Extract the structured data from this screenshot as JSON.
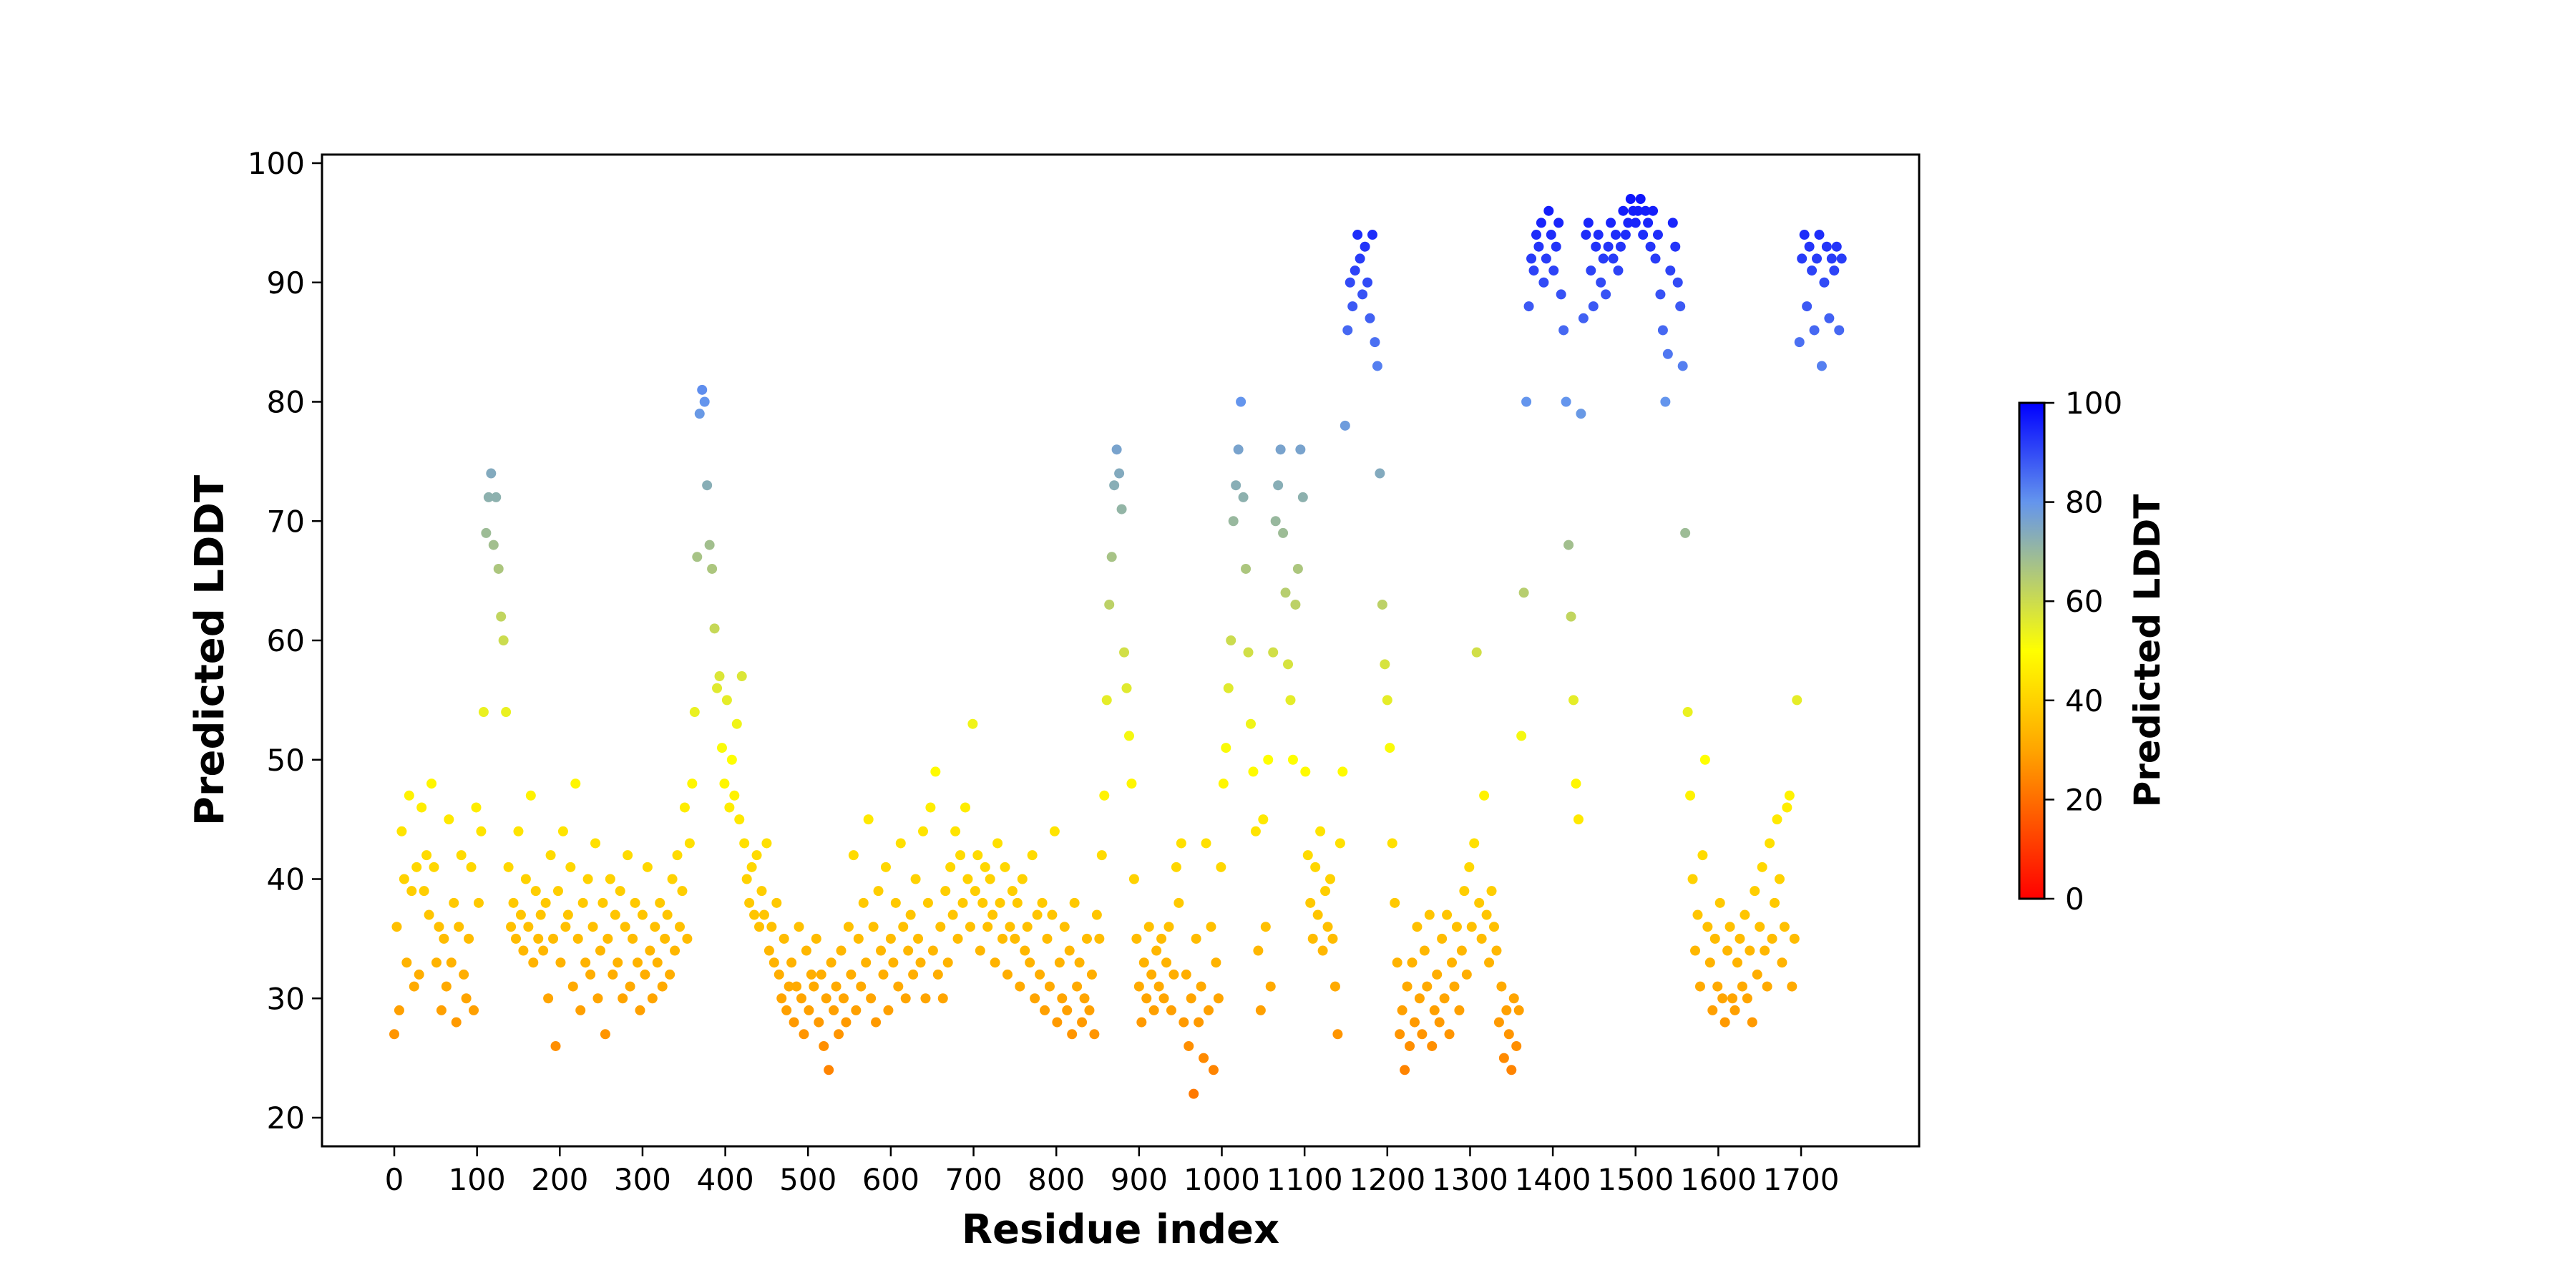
{
  "chart_data": {
    "type": "scatter",
    "title": "",
    "xlabel": "Residue index",
    "ylabel": "Predicted LDDT",
    "xlim": [
      -87,
      1843
    ],
    "ylim": [
      17.7,
      100.7
    ],
    "x_ticks": [
      0,
      100,
      200,
      300,
      400,
      500,
      600,
      700,
      800,
      900,
      1000,
      1100,
      1200,
      1300,
      1400,
      1500,
      1600,
      1700
    ],
    "y_ticks": [
      20,
      30,
      40,
      50,
      60,
      70,
      80,
      90,
      100
    ],
    "grid": false,
    "legend": "none",
    "x_start": 0,
    "x_step": 3,
    "note_sampling": "values sampled every 3 residues",
    "values": [
      27,
      36,
      29,
      44,
      40,
      33,
      47,
      39,
      31,
      41,
      32,
      46,
      39,
      42,
      37,
      48,
      41,
      33,
      36,
      29,
      35,
      31,
      45,
      33,
      38,
      28,
      36,
      42,
      32,
      30,
      35,
      41,
      29,
      46,
      38,
      44,
      54,
      69,
      72,
      74,
      68,
      72,
      66,
      62,
      60,
      54,
      41,
      36,
      38,
      35,
      44,
      37,
      34,
      40,
      36,
      47,
      33,
      39,
      35,
      37,
      34,
      38,
      30,
      42,
      35,
      26,
      39,
      33,
      44,
      36,
      37,
      41,
      31,
      48,
      35,
      29,
      38,
      33,
      40,
      32,
      36,
      43,
      30,
      34,
      38,
      27,
      35,
      40,
      32,
      37,
      33,
      39,
      30,
      36,
      42,
      31,
      35,
      38,
      33,
      29,
      37,
      32,
      41,
      34,
      30,
      36,
      33,
      38,
      31,
      35,
      37,
      32,
      40,
      34,
      42,
      36,
      39,
      46,
      35,
      43,
      48,
      54,
      67,
      79,
      81,
      80,
      73,
      68,
      66,
      61,
      56,
      57,
      51,
      48,
      55,
      46,
      50,
      47,
      53,
      45,
      57,
      43,
      40,
      38,
      41,
      37,
      42,
      36,
      39,
      37,
      43,
      34,
      36,
      33,
      38,
      32,
      30,
      35,
      29,
      31,
      33,
      28,
      31,
      36,
      30,
      27,
      34,
      29,
      32,
      31,
      35,
      28,
      32,
      26,
      30,
      24,
      33,
      29,
      31,
      27,
      34,
      30,
      28,
      36,
      32,
      42,
      29,
      35,
      31,
      38,
      33,
      45,
      30,
      36,
      28,
      39,
      34,
      32,
      41,
      29,
      35,
      33,
      38,
      31,
      43,
      36,
      30,
      34,
      37,
      32,
      40,
      35,
      33,
      44,
      30,
      38,
      46,
      34,
      49,
      32,
      36,
      30,
      39,
      33,
      41,
      37,
      44,
      35,
      42,
      38,
      46,
      40,
      36,
      53,
      39,
      42,
      34,
      38,
      41,
      36,
      40,
      37,
      33,
      43,
      38,
      35,
      41,
      32,
      36,
      39,
      35,
      38,
      31,
      40,
      34,
      36,
      33,
      42,
      30,
      37,
      32,
      38,
      29,
      35,
      31,
      37,
      44,
      28,
      33,
      30,
      36,
      29,
      34,
      27,
      38,
      31,
      33,
      28,
      30,
      35,
      29,
      32,
      27,
      37,
      35,
      42,
      47,
      55,
      63,
      67,
      73,
      76,
      74,
      71,
      59,
      56,
      52,
      48,
      40,
      35,
      31,
      28,
      33,
      30,
      36,
      32,
      29,
      34,
      31,
      35,
      30,
      33,
      36,
      29,
      32,
      41,
      38,
      43,
      28,
      32,
      26,
      30,
      22,
      35,
      28,
      31,
      25,
      43,
      29,
      36,
      24,
      33,
      30,
      41,
      48,
      51,
      56,
      60,
      70,
      73,
      76,
      80,
      72,
      66,
      59,
      53,
      49,
      44,
      34,
      29,
      45,
      36,
      50,
      31,
      59,
      70,
      73,
      76,
      69,
      64,
      58,
      55,
      50,
      63,
      66,
      76,
      72,
      49,
      42,
      38,
      35,
      41,
      37,
      44,
      34,
      39,
      36,
      40,
      35,
      31,
      27,
      43,
      49,
      78,
      86,
      90,
      88,
      91,
      94,
      92,
      89,
      93,
      90,
      87,
      94,
      85,
      83,
      74,
      63,
      58,
      55,
      51,
      43,
      38,
      33,
      27,
      29,
      24,
      31,
      26,
      33,
      28,
      36,
      30,
      27,
      34,
      31,
      37,
      26,
      29,
      32,
      28,
      35,
      30,
      37,
      27,
      33,
      31,
      36,
      29,
      34,
      39,
      32,
      41,
      36,
      43,
      59,
      38,
      35,
      47,
      37,
      33,
      39,
      36,
      34,
      28,
      31,
      25,
      29,
      27,
      24,
      30,
      26,
      29,
      52,
      64,
      80,
      88,
      92,
      91,
      94,
      93,
      95,
      90,
      92,
      96,
      94,
      91,
      93,
      95,
      89,
      86,
      80,
      68,
      62,
      55,
      48,
      45,
      79,
      87,
      94,
      95,
      91,
      88,
      93,
      94,
      90,
      92,
      89,
      93,
      95,
      92,
      94,
      91,
      93,
      96,
      94,
      95,
      97,
      96,
      95,
      96,
      97,
      94,
      96,
      95,
      93,
      96,
      92,
      94,
      89,
      86,
      80,
      84,
      91,
      95,
      93,
      90,
      88,
      83,
      69,
      54,
      47,
      40,
      34,
      37,
      31,
      42,
      50,
      36,
      33,
      29,
      35,
      31,
      38,
      30,
      28,
      34,
      36,
      30,
      29,
      33,
      35,
      31,
      37,
      30,
      34,
      28,
      39,
      32,
      36,
      41,
      34,
      31,
      43,
      35,
      38,
      45,
      40,
      33,
      36,
      46,
      47,
      31,
      35,
      55,
      85,
      92,
      94,
      88,
      93,
      91,
      86,
      92,
      94,
      83,
      90,
      93,
      87,
      92,
      91,
      93,
      86,
      92
    ],
    "colorbar": {
      "label": "Predicted LDDT",
      "range": [
        0,
        100
      ],
      "ticks": [
        0,
        20,
        40,
        60,
        80,
        100
      ],
      "colormap_stops": [
        {
          "value": 0,
          "color": "#ff0000"
        },
        {
          "value": 30,
          "color": "#ffa500"
        },
        {
          "value": 50,
          "color": "#ffff00"
        },
        {
          "value": 80,
          "color": "#6495ed"
        },
        {
          "value": 100,
          "color": "#0000ff"
        }
      ]
    }
  }
}
